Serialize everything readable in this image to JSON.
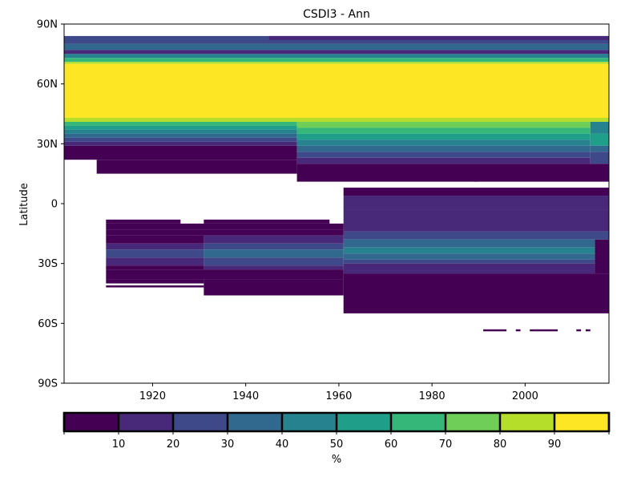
{
  "chart_data": {
    "type": "heatmap",
    "title": "CSDI3 - Ann",
    "xlabel": "",
    "ylabel": "Latitude",
    "xlim": [
      1901,
      2018
    ],
    "ylim": [
      -90,
      90
    ],
    "xticks": [
      1920,
      1940,
      1960,
      1980,
      2000
    ],
    "xtick_labels": [
      "1920",
      "1940",
      "1960",
      "1980",
      "2000"
    ],
    "yticks": [
      90,
      60,
      30,
      0,
      -30,
      -60,
      -90
    ],
    "ytick_labels": [
      "90N",
      "60N",
      "30N",
      "0",
      "30S",
      "60S",
      "90S"
    ],
    "grid": false,
    "colorbar": {
      "label": "%",
      "bounds": [
        0,
        10,
        20,
        30,
        40,
        50,
        60,
        70,
        80,
        90,
        100
      ],
      "tick_values": [
        10,
        20,
        30,
        40,
        50,
        60,
        70,
        80,
        90
      ],
      "tick_labels": [
        "10",
        "20",
        "30",
        "40",
        "50",
        "60",
        "70",
        "80",
        "90"
      ],
      "colors": [
        "#440154",
        "#482878",
        "#3e4989",
        "#31688e",
        "#26828e",
        "#1f9e89",
        "#35b779",
        "#6ece58",
        "#b5de2b",
        "#fde725"
      ]
    },
    "cells": [
      {
        "lat_top": 84,
        "lat_bottom": 80,
        "year_start": 1901,
        "year_end": 2018,
        "value": 25
      },
      {
        "lat_top": 80,
        "lat_bottom": 77,
        "year_start": 1901,
        "year_end": 2018,
        "value": 35
      },
      {
        "lat_top": 77,
        "lat_bottom": 75,
        "year_start": 1901,
        "year_end": 2018,
        "value": 15
      },
      {
        "lat_top": 75,
        "lat_bottom": 73,
        "year_start": 1901,
        "year_end": 2018,
        "value": 45
      },
      {
        "lat_top": 73,
        "lat_bottom": 71,
        "year_start": 1901,
        "year_end": 2018,
        "value": 65
      },
      {
        "lat_top": 71,
        "lat_bottom": 70,
        "year_start": 1901,
        "year_end": 2018,
        "value": 85
      },
      {
        "lat_top": 70,
        "lat_bottom": 43,
        "year_start": 1901,
        "year_end": 2018,
        "value": 95
      },
      {
        "lat_top": 43,
        "lat_bottom": 41,
        "year_start": 1901,
        "year_end": 2018,
        "value": 85
      },
      {
        "lat_top": 41,
        "lat_bottom": 39,
        "year_start": 1901,
        "year_end": 1951,
        "value": 65
      },
      {
        "lat_top": 39,
        "lat_bottom": 37,
        "year_start": 1901,
        "year_end": 1951,
        "value": 55
      },
      {
        "lat_top": 37,
        "lat_bottom": 35,
        "year_start": 1901,
        "year_end": 1951,
        "value": 45
      },
      {
        "lat_top": 35,
        "lat_bottom": 33,
        "year_start": 1901,
        "year_end": 1951,
        "value": 35
      },
      {
        "lat_top": 33,
        "lat_bottom": 31,
        "year_start": 1901,
        "year_end": 1951,
        "value": 25
      },
      {
        "lat_top": 31,
        "lat_bottom": 29,
        "year_start": 1901,
        "year_end": 1951,
        "value": 15
      },
      {
        "lat_top": 29,
        "lat_bottom": 22,
        "year_start": 1901,
        "year_end": 1951,
        "value": 5
      },
      {
        "lat_top": 22,
        "lat_bottom": 15,
        "year_start": 1908,
        "year_end": 1951,
        "value": 5
      },
      {
        "lat_top": 41,
        "lat_bottom": 38,
        "year_start": 1951,
        "year_end": 2014,
        "value": 75
      },
      {
        "lat_top": 38,
        "lat_bottom": 35,
        "year_start": 1951,
        "year_end": 2014,
        "value": 65
      },
      {
        "lat_top": 35,
        "lat_bottom": 32,
        "year_start": 1951,
        "year_end": 2014,
        "value": 55
      },
      {
        "lat_top": 32,
        "lat_bottom": 29,
        "year_start": 1951,
        "year_end": 2014,
        "value": 45
      },
      {
        "lat_top": 29,
        "lat_bottom": 26,
        "year_start": 1951,
        "year_end": 2014,
        "value": 35
      },
      {
        "lat_top": 26,
        "lat_bottom": 23,
        "year_start": 1951,
        "year_end": 2014,
        "value": 25
      },
      {
        "lat_top": 23,
        "lat_bottom": 20,
        "year_start": 1951,
        "year_end": 2014,
        "value": 15
      },
      {
        "lat_top": 20,
        "lat_bottom": 11,
        "year_start": 1951,
        "year_end": 2018,
        "value": 5
      },
      {
        "lat_top": 41,
        "lat_bottom": 35,
        "year_start": 2014,
        "year_end": 2018,
        "value": 45
      },
      {
        "lat_top": 35,
        "lat_bottom": 29,
        "year_start": 2014,
        "year_end": 2018,
        "value": 55
      },
      {
        "lat_top": 29,
        "lat_bottom": 26,
        "year_start": 2014,
        "year_end": 2018,
        "value": 35
      },
      {
        "lat_top": 26,
        "lat_bottom": 20,
        "year_start": 2014,
        "year_end": 2018,
        "value": 25
      },
      {
        "lat_top": 8,
        "lat_bottom": 4,
        "year_start": 1961,
        "year_end": 2018,
        "value": 5
      },
      {
        "lat_top": 4,
        "lat_bottom": -3,
        "year_start": 1961,
        "year_end": 2018,
        "value": 15
      },
      {
        "lat_top": -3,
        "lat_bottom": -14,
        "year_start": 1961,
        "year_end": 2018,
        "value": 15
      },
      {
        "lat_top": -14,
        "lat_bottom": -18,
        "year_start": 1961,
        "year_end": 2018,
        "value": 25
      },
      {
        "lat_top": -18,
        "lat_bottom": -22,
        "year_start": 1961,
        "year_end": 2015,
        "value": 35
      },
      {
        "lat_top": -22,
        "lat_bottom": -25,
        "year_start": 1961,
        "year_end": 2015,
        "value": 45
      },
      {
        "lat_top": -25,
        "lat_bottom": -28,
        "year_start": 1961,
        "year_end": 2015,
        "value": 35
      },
      {
        "lat_top": -28,
        "lat_bottom": -30,
        "year_start": 1961,
        "year_end": 2015,
        "value": 25
      },
      {
        "lat_top": -30,
        "lat_bottom": -35,
        "year_start": 1961,
        "year_end": 2015,
        "value": 15
      },
      {
        "lat_top": -18,
        "lat_bottom": -35,
        "year_start": 2015,
        "year_end": 2018,
        "value": 5
      },
      {
        "lat_top": -35,
        "lat_bottom": -55,
        "year_start": 1961,
        "year_end": 2018,
        "value": 5
      },
      {
        "lat_top": -8,
        "lat_bottom": -10,
        "year_start": 1910,
        "year_end": 1926,
        "value": 5
      },
      {
        "lat_top": -8,
        "lat_bottom": -10,
        "year_start": 1931,
        "year_end": 1958,
        "value": 5
      },
      {
        "lat_top": -10,
        "lat_bottom": -13,
        "year_start": 1910,
        "year_end": 1961,
        "value": 5
      },
      {
        "lat_top": -13,
        "lat_bottom": -16,
        "year_start": 1910,
        "year_end": 1961,
        "value": 5
      },
      {
        "lat_top": -16,
        "lat_bottom": -20,
        "year_start": 1910,
        "year_end": 1931,
        "value": 5
      },
      {
        "lat_top": -16,
        "lat_bottom": -20,
        "year_start": 1931,
        "year_end": 1961,
        "value": 15
      },
      {
        "lat_top": -20,
        "lat_bottom": -23,
        "year_start": 1910,
        "year_end": 1931,
        "value": 15
      },
      {
        "lat_top": -20,
        "lat_bottom": -23,
        "year_start": 1931,
        "year_end": 1961,
        "value": 25
      },
      {
        "lat_top": -23,
        "lat_bottom": -27,
        "year_start": 1910,
        "year_end": 1931,
        "value": 25
      },
      {
        "lat_top": -23,
        "lat_bottom": -27,
        "year_start": 1931,
        "year_end": 1961,
        "value": 35
      },
      {
        "lat_top": -27,
        "lat_bottom": -31,
        "year_start": 1910,
        "year_end": 1931,
        "value": 15
      },
      {
        "lat_top": -27,
        "lat_bottom": -31,
        "year_start": 1931,
        "year_end": 1961,
        "value": 25
      },
      {
        "lat_top": -31,
        "lat_bottom": -33,
        "year_start": 1910,
        "year_end": 1931,
        "value": 5
      },
      {
        "lat_top": -31,
        "lat_bottom": -33,
        "year_start": 1931,
        "year_end": 1961,
        "value": 15
      },
      {
        "lat_top": -33,
        "lat_bottom": -38,
        "year_start": 1910,
        "year_end": 1961,
        "value": 5
      },
      {
        "lat_top": -38,
        "lat_bottom": -40,
        "year_start": 1910,
        "year_end": 1931,
        "value": 5
      },
      {
        "lat_top": -38,
        "lat_bottom": -46,
        "year_start": 1931,
        "year_end": 1961,
        "value": 5
      },
      {
        "lat_top": -41,
        "lat_bottom": -42,
        "year_start": 1910,
        "year_end": 1931,
        "value": 5
      },
      {
        "lat_top": 84,
        "lat_bottom": 82,
        "year_start": 1945,
        "year_end": 2018,
        "value": 15
      },
      {
        "lat_top": -63,
        "lat_bottom": -64,
        "year_start": 1991,
        "year_end": 1996,
        "value": 5
      },
      {
        "lat_top": -63,
        "lat_bottom": -64,
        "year_start": 1998,
        "year_end": 1999,
        "value": 5
      },
      {
        "lat_top": -63,
        "lat_bottom": -64,
        "year_start": 2001,
        "year_end": 2007,
        "value": 5
      },
      {
        "lat_top": -63,
        "lat_bottom": -64,
        "year_start": 2011,
        "year_end": 2012,
        "value": 5
      },
      {
        "lat_top": -63,
        "lat_bottom": -64,
        "year_start": 2013,
        "year_end": 2014,
        "value": 5
      },
      {
        "lat_top": 12,
        "lat_bottom": 11,
        "year_start": 1989,
        "year_end": 1990,
        "value": 5
      }
    ]
  }
}
